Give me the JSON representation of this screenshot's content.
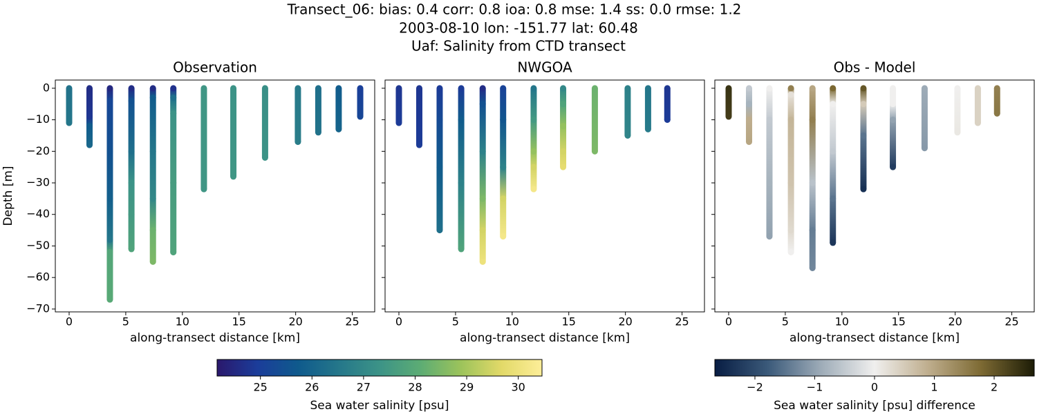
{
  "figure": {
    "title": [
      "Transect_06: bias: 0.4  corr: 0.8  ioa: 0.8  mse: 1.4  ss: 0.0  rmse: 1.2",
      "2003-08-10 lon: -151.77 lat: 60.48",
      "Uaf: Salinity from CTD transect"
    ]
  },
  "chart_data": [
    {
      "type": "scatter",
      "title": "Observation",
      "xlabel": "along-transect distance [km]",
      "ylabel": "Depth [m]",
      "colorbar": 0,
      "xlim": [
        -1.22,
        26.98
      ],
      "ylim": [
        -70.9,
        2.6
      ],
      "xticks": [
        0,
        5,
        10,
        15,
        20,
        25
      ],
      "yticks": [
        0,
        {
          "value": -10,
          "label": "−10"
        },
        {
          "value": -20,
          "label": "−20"
        },
        {
          "value": -30,
          "label": "−30"
        },
        {
          "value": -40,
          "label": "−40"
        },
        {
          "value": -50,
          "label": "−50"
        },
        {
          "value": -60,
          "label": "−60"
        },
        {
          "value": -70,
          "label": "−70"
        }
      ],
      "ytick_labels": true,
      "casts": [
        {
          "x": 0,
          "depth": [
            0,
            -11
          ],
          "values": [
            26.4,
            26.5
          ]
        },
        {
          "x": 1.8,
          "depth": [
            0,
            -9,
            -12,
            -18
          ],
          "values": [
            24.6,
            24.8,
            25.8,
            26.1
          ]
        },
        {
          "x": 3.6,
          "depth": [
            0,
            -4,
            -20,
            -35,
            -48,
            -52,
            -67
          ],
          "values": [
            24.5,
            25.2,
            25.5,
            25.9,
            26.5,
            27.9,
            28.0
          ]
        },
        {
          "x": 5.5,
          "depth": [
            0,
            -4,
            -20,
            -30,
            -40,
            -51
          ],
          "values": [
            24.6,
            25.5,
            26.3,
            27.3,
            27.5,
            27.8
          ]
        },
        {
          "x": 7.4,
          "depth": [
            0,
            -3,
            -20,
            -35,
            -45,
            -55
          ],
          "values": [
            24.6,
            25.8,
            26.5,
            27.0,
            28.3,
            28.5
          ]
        },
        {
          "x": 9.2,
          "depth": [
            0,
            -3,
            -8,
            -30,
            -52
          ],
          "values": [
            24.7,
            26.3,
            27.3,
            27.6,
            27.8
          ]
        },
        {
          "x": 11.9,
          "depth": [
            0,
            -32
          ],
          "values": [
            27.4,
            27.4
          ]
        },
        {
          "x": 14.5,
          "depth": [
            0,
            -28
          ],
          "values": [
            27.3,
            27.4
          ]
        },
        {
          "x": 17.3,
          "depth": [
            0,
            -22
          ],
          "values": [
            27.2,
            27.3
          ]
        },
        {
          "x": 20.2,
          "depth": [
            0,
            -17
          ],
          "values": [
            26.6,
            26.7
          ]
        },
        {
          "x": 22.0,
          "depth": [
            0,
            -14
          ],
          "values": [
            26.3,
            26.4
          ]
        },
        {
          "x": 23.8,
          "depth": [
            0,
            -13
          ],
          "values": [
            25.8,
            26.0
          ]
        },
        {
          "x": 25.7,
          "depth": [
            0,
            -9
          ],
          "values": [
            25.0,
            25.2
          ]
        }
      ]
    },
    {
      "type": "scatter",
      "title": "NWGOA",
      "xlabel": "along-transect distance [km]",
      "colorbar": 0,
      "xlim": [
        -1.22,
        26.98
      ],
      "ylim": [
        -70.9,
        2.6
      ],
      "xticks": [
        0,
        5,
        10,
        15,
        20,
        25
      ],
      "yticks": [
        0,
        -10,
        -20,
        -30,
        -40,
        -50,
        -60,
        -70
      ],
      "ytick_labels": false,
      "casts": [
        {
          "x": 0,
          "depth": [
            0,
            -11
          ],
          "values": [
            24.8,
            24.9
          ]
        },
        {
          "x": 1.8,
          "depth": [
            0,
            -18
          ],
          "values": [
            24.8,
            24.9
          ]
        },
        {
          "x": 3.6,
          "depth": [
            0,
            -10,
            -25,
            -45
          ],
          "values": [
            24.9,
            25.3,
            25.8,
            26.3
          ]
        },
        {
          "x": 5.5,
          "depth": [
            0,
            -10,
            -30,
            -51
          ],
          "values": [
            24.9,
            25.8,
            26.8,
            27.8
          ]
        },
        {
          "x": 7.4,
          "depth": [
            0,
            -5,
            -20,
            -35,
            -45,
            -55
          ],
          "values": [
            24.6,
            25.5,
            26.8,
            28.5,
            29.5,
            30.0
          ]
        },
        {
          "x": 9.2,
          "depth": [
            0,
            -10,
            -25,
            -35,
            -47
          ],
          "values": [
            25.1,
            25.6,
            26.8,
            29.5,
            30.2
          ]
        },
        {
          "x": 11.9,
          "depth": [
            0,
            -10,
            -20,
            -25,
            -32
          ],
          "values": [
            26.5,
            27.5,
            28.8,
            29.5,
            30.2
          ]
        },
        {
          "x": 14.5,
          "depth": [
            0,
            -5,
            -12,
            -20,
            -25
          ],
          "values": [
            27.0,
            27.8,
            28.8,
            29.5,
            29.8
          ]
        },
        {
          "x": 17.3,
          "depth": [
            0,
            -20
          ],
          "values": [
            28.3,
            28.5
          ]
        },
        {
          "x": 20.2,
          "depth": [
            0,
            -15
          ],
          "values": [
            26.8,
            26.9
          ]
        },
        {
          "x": 22.0,
          "depth": [
            0,
            -13
          ],
          "values": [
            26.5,
            26.6
          ]
        },
        {
          "x": 23.7,
          "depth": [
            0,
            -10
          ],
          "values": [
            24.8,
            24.9
          ]
        }
      ]
    },
    {
      "type": "scatter",
      "title": "Obs - Model",
      "xlabel": "along-transect distance [km]",
      "colorbar": 1,
      "xlim": [
        -1.22,
        26.98
      ],
      "ylim": [
        -70.9,
        2.6
      ],
      "xticks": [
        0,
        5,
        10,
        15,
        20,
        25
      ],
      "yticks": [
        0,
        -10,
        -20,
        -30,
        -40,
        -50,
        -60,
        -70
      ],
      "ytick_labels": false,
      "casts": [
        {
          "x": 0,
          "depth": [
            0,
            -9
          ],
          "values": [
            2.4,
            2.3
          ]
        },
        {
          "x": 1.8,
          "depth": [
            0,
            -5,
            -10,
            -17
          ],
          "values": [
            -0.5,
            -0.8,
            0.9,
            1.0
          ]
        },
        {
          "x": 3.6,
          "depth": [
            0,
            -10,
            -30,
            -47
          ],
          "values": [
            0.0,
            -0.5,
            -0.8,
            -1.0
          ]
        },
        {
          "x": 5.5,
          "depth": [
            0,
            -2,
            -10,
            -30,
            -45,
            -52
          ],
          "values": [
            1.5,
            0.2,
            0.8,
            0.6,
            0.3,
            0.0
          ]
        },
        {
          "x": 7.4,
          "depth": [
            0,
            -10,
            -30,
            -45,
            -57
          ],
          "values": [
            1.0,
            1.5,
            -0.6,
            -1.4,
            -1.3
          ]
        },
        {
          "x": 9.2,
          "depth": [
            0,
            -5,
            -20,
            -35,
            -49
          ],
          "values": [
            1.8,
            0.0,
            -0.5,
            -1.5,
            -2.3
          ]
        },
        {
          "x": 11.9,
          "depth": [
            0,
            -5,
            -15,
            -32
          ],
          "values": [
            2.0,
            0.5,
            -1.5,
            -2.4
          ]
        },
        {
          "x": 14.5,
          "depth": [
            0,
            -5,
            -10,
            -25
          ],
          "values": [
            0.0,
            0.0,
            -1.0,
            -2.2
          ]
        },
        {
          "x": 17.3,
          "depth": [
            0,
            -19
          ],
          "values": [
            -0.9,
            -1.1
          ]
        },
        {
          "x": 20.2,
          "depth": [
            0,
            -14
          ],
          "values": [
            0.0,
            0.1
          ]
        },
        {
          "x": 22.0,
          "depth": [
            0,
            -11
          ],
          "values": [
            0.4,
            0.4
          ]
        },
        {
          "x": 23.7,
          "depth": [
            0,
            -8
          ],
          "values": [
            1.5,
            1.6
          ]
        }
      ]
    }
  ],
  "colorbars": [
    {
      "label": "Sea water salinity [psu]",
      "clim": [
        24.16,
        30.46
      ],
      "ticks": [
        25,
        26,
        27,
        28,
        29,
        30
      ],
      "colormap": [
        "#2a186c",
        "#1b3d9a",
        "#0f5a8c",
        "#25778a",
        "#3c9387",
        "#5cac74",
        "#9cc35b",
        "#e2d968",
        "#fdee99"
      ]
    },
    {
      "label": "Sea water salinity [psu] difference",
      "clim": [
        -2.67,
        2.67
      ],
      "ticks": [
        {
          "value": -2,
          "label": "−2"
        },
        {
          "value": -1,
          "label": "−1"
        },
        0,
        1,
        2
      ],
      "colormap": [
        "#081d43",
        "#3b5a7a",
        "#9eacb8",
        "#f0efee",
        "#bfae8e",
        "#7d6a33",
        "#1c1c06"
      ]
    }
  ]
}
